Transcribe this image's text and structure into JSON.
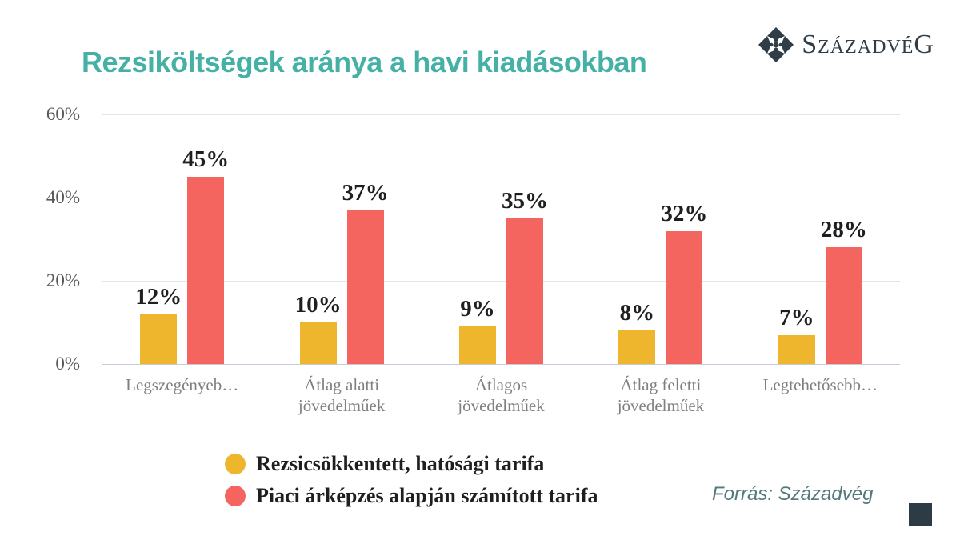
{
  "header": {
    "title": "Rezsiköltségek aránya a havi kiadásokban",
    "title_color": "#45b1a6",
    "logo_text": "SzázadvéG",
    "logo_color": "#2e3d47"
  },
  "chart_data": {
    "type": "bar",
    "title": "Rezsiköltségek aránya a havi kiadásokban",
    "categories": [
      "Legszegényeb…",
      "Átlag alatti\njövedelműek",
      "Átlagos\njövedelműek",
      "Átlag feletti\njövedelműek",
      "Legtehetősebb…"
    ],
    "series": [
      {
        "name": "Rezsicsökkentett, hatósági tarifa",
        "color": "#eeb62c",
        "values": [
          12,
          10,
          9,
          8,
          7
        ]
      },
      {
        "name": "Piaci árképzés alapján számított tarifa",
        "color": "#f4655f",
        "values": [
          45,
          37,
          35,
          32,
          28
        ]
      }
    ],
    "value_suffix": "%",
    "xlabel": "",
    "ylabel": "",
    "ylim": [
      0,
      60
    ],
    "yticks": [
      "0%",
      "20%",
      "40%",
      "60%"
    ],
    "grid": true,
    "legend_position": "bottom-left",
    "gridline_color": "#e2e3ec",
    "baseline_color": "#c7ccdd"
  },
  "footer": {
    "source": "Forrás: Századvég"
  }
}
